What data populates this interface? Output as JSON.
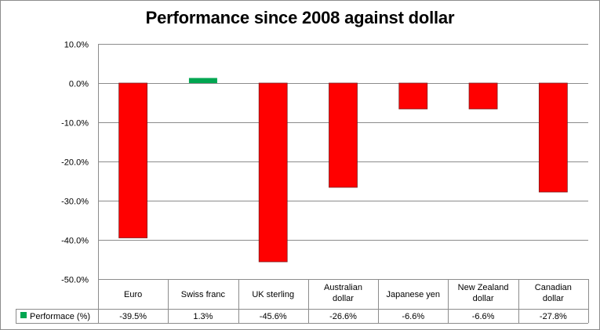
{
  "chart_data": {
    "type": "bar",
    "title": "Performance since 2008 against dollar",
    "categories": [
      "Euro",
      "Swiss franc",
      "UK sterling",
      "Australian dollar",
      "Japanese yen",
      "New Zealand dollar",
      "Canadian dollar"
    ],
    "category_lines": [
      [
        "Euro"
      ],
      [
        "Swiss franc"
      ],
      [
        "UK sterling"
      ],
      [
        "Australian",
        "dollar"
      ],
      [
        "Japanese yen"
      ],
      [
        "New Zealand",
        "dollar"
      ],
      [
        "Canadian",
        "dollar"
      ]
    ],
    "series": [
      {
        "name": "Performace (%)",
        "values": [
          -39.5,
          1.3,
          -45.6,
          -26.6,
          -6.6,
          -6.6,
          -27.8
        ]
      }
    ],
    "value_labels": [
      "-39.5%",
      "1.3%",
      "-45.6%",
      "-26.6%",
      "-6.6%",
      "-6.6%",
      "-27.8%"
    ],
    "yticks": [
      10,
      0,
      -10,
      -20,
      -30,
      -40,
      -50
    ],
    "ytick_labels": [
      "10.0%",
      "0.0%",
      "-10.0%",
      "-20.0%",
      "-30.0%",
      "-40.0%",
      "-50.0%"
    ],
    "ylim": [
      -50,
      10
    ],
    "grid": true,
    "data_table": true,
    "colors": {
      "negative": "#ff0000",
      "positive": "#00a651",
      "legend_key": "#00a651",
      "gridline": "#8c8c8c"
    }
  }
}
